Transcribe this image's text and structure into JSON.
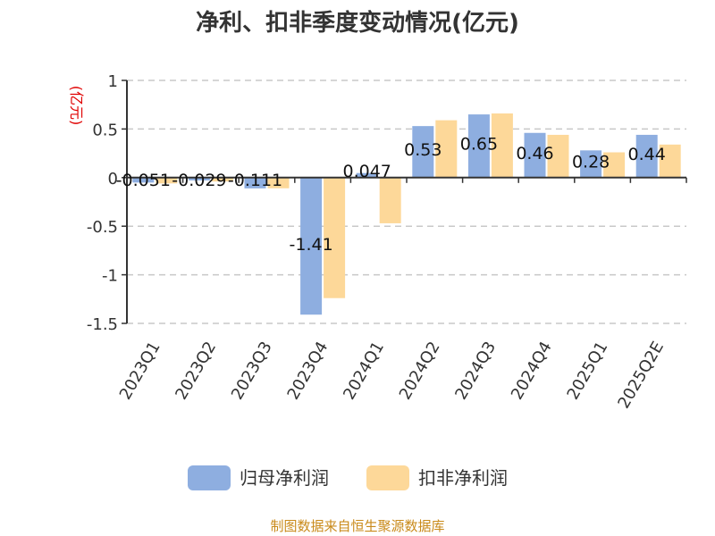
{
  "chart_data": {
    "type": "bar",
    "title": "净利、扣非季度变动情况(亿元)",
    "ylabel": "(亿元)",
    "ylim": [
      -1.5,
      1
    ],
    "yticks": [
      "1",
      "0.5",
      "0",
      "-0.5",
      "-1",
      "-1.5"
    ],
    "categories": [
      "2023Q1",
      "2023Q2",
      "2023Q3",
      "2023Q4",
      "2024Q1",
      "2024Q2",
      "2024Q3",
      "2024Q4",
      "2025Q1",
      "2025Q2E"
    ],
    "series": [
      {
        "name": "归母净利润",
        "color": "#8eaee0",
        "values": [
          -0.051,
          -0.029,
          -0.111,
          -1.41,
          0.047,
          0.53,
          0.65,
          0.46,
          0.28,
          0.44
        ],
        "labels": [
          "-0.051",
          "-0.029",
          "-0.111",
          "-1.41",
          "0.047",
          "0.53",
          "0.65",
          "0.46",
          "0.28",
          "0.44"
        ]
      },
      {
        "name": "扣非净利润",
        "color": "#fdd899",
        "values": [
          -0.06,
          -0.04,
          -0.11,
          -1.24,
          -0.47,
          0.59,
          0.66,
          0.44,
          0.26,
          0.34
        ]
      }
    ],
    "grid": true,
    "legend_position": "bottom"
  },
  "source": "制图数据来自恒生聚源数据库"
}
